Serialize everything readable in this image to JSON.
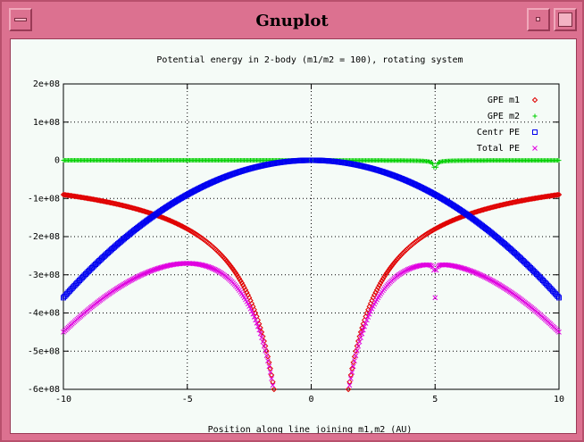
{
  "window": {
    "title": "Gnuplot"
  },
  "chart_data": {
    "type": "scatter",
    "title": "Potential energy in 2-body (m1/m2 = 100), rotating system",
    "xlabel": "Position along line joining m1,m2 (AU)",
    "ylabel": "",
    "xlim": [
      -10,
      10
    ],
    "ylim": [
      -600000000,
      200000000
    ],
    "xticks": [
      -10,
      -5,
      0,
      5,
      10
    ],
    "xtick_labels": [
      "-10",
      "-5",
      "0",
      "5",
      "10"
    ],
    "yticks": [
      200000000,
      100000000,
      0,
      -100000000,
      -200000000,
      -300000000,
      -400000000,
      -500000000,
      -600000000
    ],
    "ytick_labels": [
      "2e+08",
      "1e+08",
      "0",
      "-1e+08",
      "-2e+08",
      "-3e+08",
      "-4e+08",
      "-5e+08",
      "-6e+08"
    ],
    "grid": true,
    "legend_position": "top-right",
    "series": [
      {
        "name": "GPE m1",
        "marker": "diamond",
        "color": "#e00000"
      },
      {
        "name": "GPE m2",
        "marker": "plus",
        "color": "#00d000"
      },
      {
        "name": "Centr PE",
        "marker": "square",
        "color": "#0000f0"
      },
      {
        "name": "Total PE",
        "marker": "cross",
        "color": "#e000e0"
      }
    ],
    "model": {
      "gpe_m1_at_10": -90000000,
      "gpe_m2_amplitude": -900000,
      "m2_position": 5,
      "centr_pe_at_10": -360000000
    }
  }
}
